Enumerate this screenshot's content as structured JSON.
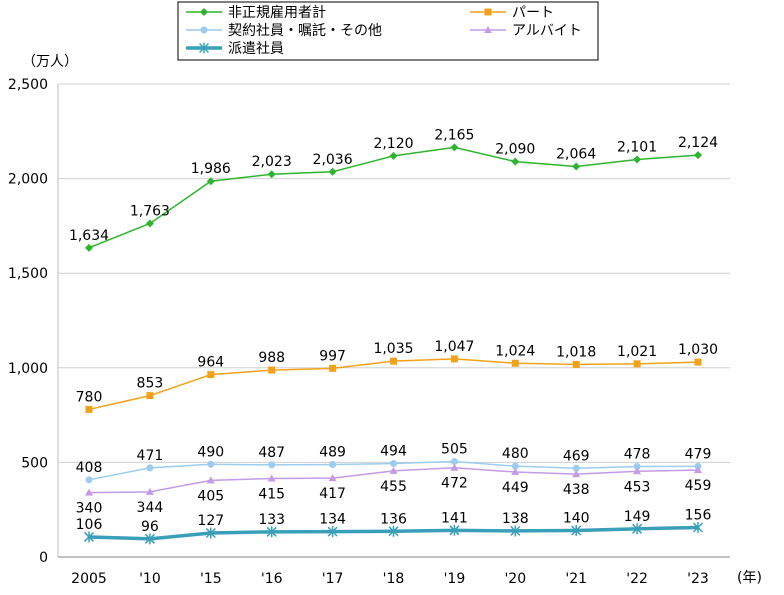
{
  "chart_data": {
    "type": "line",
    "y_unit_label": "（万人）",
    "x_unit_label": "(年)",
    "categories": [
      "2005",
      "'10",
      "'15",
      "'16",
      "'17",
      "'18",
      "'19",
      "'20",
      "'21",
      "'22",
      "'23"
    ],
    "y_ticks": [
      "0",
      "500",
      "1,000",
      "1,500",
      "2,000",
      "2,500"
    ],
    "ylim": [
      0,
      2500
    ],
    "grid": true,
    "legend_position": "top",
    "series": [
      {
        "name": "非正規雇用者計",
        "color": "#2db52d",
        "marker": "diamond",
        "values": [
          1634,
          1763,
          1986,
          2023,
          2036,
          2120,
          2165,
          2090,
          2064,
          2101,
          2124
        ],
        "labels": [
          "1,634",
          "1,763",
          "1,986",
          "2,023",
          "2,036",
          "2,120",
          "2,165",
          "2,090",
          "2,064",
          "2,101",
          "2,124"
        ],
        "label_pos": "above"
      },
      {
        "name": "パート",
        "color": "#f2a21a",
        "marker": "square",
        "values": [
          780,
          853,
          964,
          988,
          997,
          1035,
          1047,
          1024,
          1018,
          1021,
          1030
        ],
        "labels": [
          "780",
          "853",
          "964",
          "988",
          "997",
          "1,035",
          "1,047",
          "1,024",
          "1,018",
          "1,021",
          "1,030"
        ],
        "label_pos": "above"
      },
      {
        "name": "契約社員・嘱託・その他",
        "color": "#9cccf0",
        "marker": "circle",
        "values": [
          408,
          471,
          490,
          487,
          489,
          494,
          505,
          480,
          469,
          478,
          479
        ],
        "labels": [
          "408",
          "471",
          "490",
          "487",
          "489",
          "494",
          "505",
          "480",
          "469",
          "478",
          "479"
        ],
        "label_pos": "above"
      },
      {
        "name": "アルバイト",
        "color": "#c39be6",
        "marker": "triangle",
        "values": [
          340,
          344,
          405,
          415,
          417,
          455,
          472,
          449,
          438,
          453,
          459
        ],
        "labels": [
          "340",
          "344",
          "405",
          "415",
          "417",
          "455",
          "472",
          "449",
          "438",
          "453",
          "459"
        ],
        "label_pos": "below"
      },
      {
        "name": "派遣社員",
        "color": "#3a9fb8",
        "marker": "star",
        "values": [
          106,
          96,
          127,
          133,
          134,
          136,
          141,
          138,
          140,
          149,
          156
        ],
        "labels": [
          "106",
          "96",
          "127",
          "133",
          "134",
          "136",
          "141",
          "138",
          "140",
          "149",
          "156"
        ],
        "label_pos": "above",
        "thick": true
      }
    ]
  }
}
